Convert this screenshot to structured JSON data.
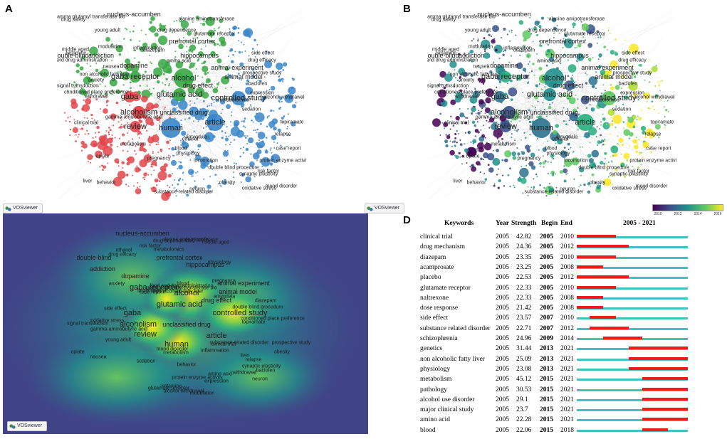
{
  "panels": {
    "a": "A",
    "b": "B",
    "c": "C",
    "d": "D"
  },
  "vosviewer_label": "VOSviewer",
  "colorbar": {
    "ticks": [
      "2010",
      "2012",
      "2014",
      "2016"
    ]
  },
  "network_keywords": {
    "large": [
      "alcohol",
      "human",
      "article",
      "controlled study",
      "alcoholism",
      "glutamic acid",
      "gaba receptor",
      "gaba",
      "review"
    ],
    "medium": [
      "nucleus-accumben",
      "addiction",
      "drug effect",
      "animal experiment",
      "unclassified drug",
      "animal model",
      "double-blind",
      "dopamine",
      "hippocampus",
      "prefrontal cortex"
    ],
    "small": [
      "conditioned place preference",
      "gamma-aminobutyric acid",
      "expression",
      "synaptic plasticity",
      "neuron",
      "amygdala",
      "modulation",
      "behavior",
      "withdrawal",
      "locomotion",
      "relapse",
      "glutamate receptor",
      "drug dependence",
      "substance-related disorder",
      "anxiety",
      "physiology",
      "signal transduction",
      "oxidative stress",
      "protein enzyme activity",
      "ethanol",
      "ketamine",
      "mood disorder",
      "diazepam",
      "alcohol withdrawal",
      "sedation",
      "drug efficacy",
      "drug safety",
      "risk factor",
      "inflammation",
      "amino acid",
      "non alcoholic fatty liver",
      "metabolomics",
      "middle aged",
      "alanine aminotransferase",
      "gamma glutamyl transferase blo",
      "double blind procedure",
      "clinical trial",
      "side effect",
      "topiramate",
      "baclofen",
      "opiate",
      "metabolism",
      "liver",
      "blood",
      "obesity",
      "young adult",
      "pregnancy",
      "food and drug administration",
      "nausea",
      "prospective study",
      "case report"
    ]
  },
  "chart_data": [
    {
      "type": "network",
      "title": "A",
      "clusters": [
        "green",
        "red",
        "blue"
      ]
    },
    {
      "type": "network",
      "title": "B",
      "color_scale": "year overlay",
      "ticks": [
        "2010",
        "2012",
        "2014",
        "2016"
      ]
    },
    {
      "type": "heatmap",
      "title": "C",
      "description": "keyword density map"
    },
    {
      "type": "table",
      "title": "D",
      "range_label": "2005 - 2021",
      "range": [
        2005,
        2021
      ],
      "columns": [
        "Keywords",
        "Year",
        "Strength",
        "Begin",
        "End",
        "2005 - 2021"
      ],
      "rows": [
        {
          "keyword": "clinical trial",
          "year": "2005",
          "strength": "42.82",
          "begin": "2005",
          "end": "2010"
        },
        {
          "keyword": "drug mechanism",
          "year": "2005",
          "strength": "24.36",
          "begin": "2005",
          "end": "2012"
        },
        {
          "keyword": "diazepam",
          "year": "2005",
          "strength": "23.35",
          "begin": "2005",
          "end": "2010"
        },
        {
          "keyword": "acamprosate",
          "year": "2005",
          "strength": "23.25",
          "begin": "2005",
          "end": "2008"
        },
        {
          "keyword": "placebo",
          "year": "2005",
          "strength": "22.53",
          "begin": "2005",
          "end": "2012"
        },
        {
          "keyword": "glutamate receptor",
          "year": "2005",
          "strength": "22.33",
          "begin": "2005",
          "end": "2010"
        },
        {
          "keyword": "naltrexone",
          "year": "2005",
          "strength": "22.33",
          "begin": "2005",
          "end": "2008"
        },
        {
          "keyword": "dose response",
          "year": "2005",
          "strength": "21.42",
          "begin": "2005",
          "end": "2008"
        },
        {
          "keyword": "side effect",
          "year": "2005",
          "strength": "23.57",
          "begin": "2007",
          "end": "2010"
        },
        {
          "keyword": "substance related disorder",
          "year": "2005",
          "strength": "22.71",
          "begin": "2007",
          "end": "2012"
        },
        {
          "keyword": "schizophrenia",
          "year": "2005",
          "strength": "24.96",
          "begin": "2009",
          "end": "2014"
        },
        {
          "keyword": "genetics",
          "year": "2005",
          "strength": "31.44",
          "begin": "2013",
          "end": "2021"
        },
        {
          "keyword": "non alcoholic fatty liver",
          "year": "2005",
          "strength": "25.09",
          "begin": "2013",
          "end": "2021"
        },
        {
          "keyword": "physiology",
          "year": "2005",
          "strength": "23.08",
          "begin": "2013",
          "end": "2021"
        },
        {
          "keyword": "metabolism",
          "year": "2005",
          "strength": "45.12",
          "begin": "2015",
          "end": "2021"
        },
        {
          "keyword": "pathology",
          "year": "2005",
          "strength": "30.53",
          "begin": "2015",
          "end": "2021"
        },
        {
          "keyword": "alcohol use disorder",
          "year": "2005",
          "strength": "29.1",
          "begin": "2015",
          "end": "2021"
        },
        {
          "keyword": "major clinical study",
          "year": "2005",
          "strength": "23.7",
          "begin": "2015",
          "end": "2021"
        },
        {
          "keyword": "amino acid",
          "year": "2005",
          "strength": "22.28",
          "begin": "2015",
          "end": "2021"
        },
        {
          "keyword": "blood",
          "year": "2005",
          "strength": "22.06",
          "begin": "2015",
          "end": "2018"
        }
      ]
    }
  ]
}
